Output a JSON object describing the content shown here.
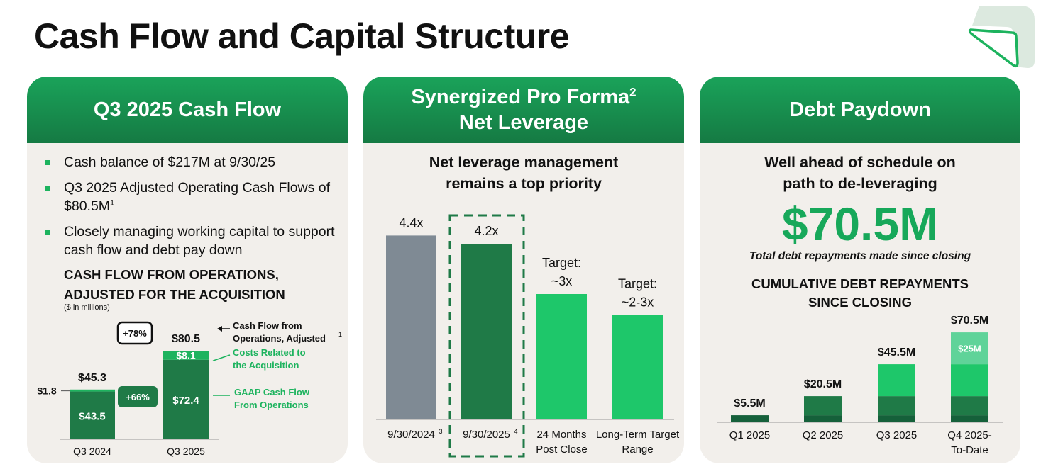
{
  "title": "Cash Flow and Capital Structure",
  "panel1": {
    "header": "Q3 2025 Cash Flow",
    "bullets": [
      "Cash balance of $217M at 9/30/25",
      "Q3 2025 Adjusted Operating Cash Flows of $80.5M",
      "Closely managing working capital to support cash flow and debt pay down"
    ],
    "bullet2_sup": "1",
    "chart_title_line1": "CASH FLOW FROM OPERATIONS,",
    "chart_title_line2": "ADJUSTED FOR THE ACQUISITION",
    "chart_subtitle": "($ in millions)"
  },
  "panel2": {
    "header_line1": "Synergized Pro Forma",
    "header_sup": "2",
    "header_line2": "Net Leverage",
    "subtitle_line1": "Net leverage management",
    "subtitle_line2": "remains a top priority"
  },
  "panel3": {
    "header": "Debt Paydown",
    "subtitle_line1": "Well ahead of schedule on",
    "subtitle_line2": "path to de-leveraging",
    "big_number": "$70.5M",
    "note": "Total debt repayments made since closing",
    "chart_title_line1": "CUMULATIVE DEBT REPAYMENTS",
    "chart_title_line2": "SINCE CLOSING"
  },
  "colors": {
    "dark_green": "#1f7a47",
    "light_green": "#1db35e",
    "bright_green": "#1ec76a",
    "darkest_green": "#15603a",
    "gray": "#7f8a94",
    "pale_green": "#5fd399"
  },
  "chart_data": [
    {
      "type": "bar",
      "stacked": true,
      "categories": [
        "Q3 2024",
        "Q3 2025"
      ],
      "series": [
        {
          "name": "GAAP Cash Flow From Operations",
          "values": [
            43.5,
            72.4
          ]
        },
        {
          "name": "Costs Related to the Acquisition",
          "values": [
            1.8,
            8.1
          ]
        }
      ],
      "totals": [
        45.3,
        80.5
      ],
      "total_labels": [
        "$45.3",
        "$80.5"
      ],
      "segment_labels": [
        [
          "$43.5",
          "$1.8"
        ],
        [
          "$72.4",
          "$8.1"
        ]
      ],
      "legend": [
        "Cash Flow from Operations, Adjusted",
        "Costs Related to the Acquisition",
        "GAAP Cash Flow From Operations"
      ],
      "legend_sup": "1",
      "growth_labels": [
        "+78%",
        "+66%"
      ]
    },
    {
      "type": "bar",
      "categories": [
        "9/30/2024",
        "9/30/2025",
        "24 Months Post Close",
        "Long-Term Target Range"
      ],
      "category_sups": [
        "3",
        "4",
        "",
        ""
      ],
      "values": [
        4.4,
        4.2,
        3.0,
        2.5
      ],
      "value_labels": [
        "4.4x",
        "4.2x",
        "Target: ~3x",
        "Target: ~2-3x"
      ],
      "highlighted_category": "9/30/2025"
    },
    {
      "type": "bar",
      "stacked": true,
      "categories": [
        "Q1 2025",
        "Q2 2025",
        "Q3 2025",
        "Q4 2025-To-Date"
      ],
      "totals": [
        5.5,
        20.5,
        45.5,
        70.5
      ],
      "total_labels": [
        "$5.5M",
        "$20.5M",
        "$45.5M",
        "$70.5M"
      ],
      "increments": [
        5.5,
        15,
        25,
        25
      ],
      "increment_label": "$25M"
    }
  ]
}
